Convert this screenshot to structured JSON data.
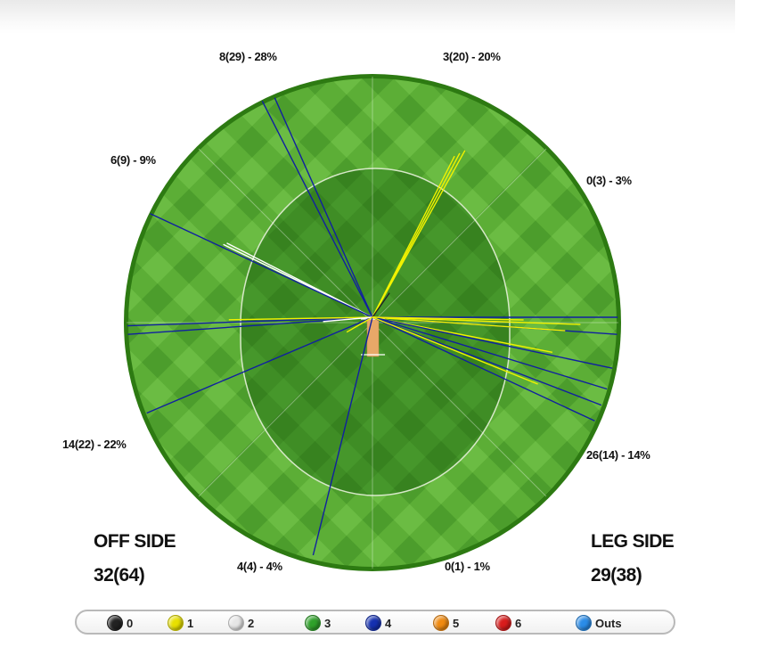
{
  "segments": [
    {
      "id": "fine-leg-behind-off",
      "label": "8(29) - 28%"
    },
    {
      "id": "fine-leg",
      "label": "3(20) - 20%"
    },
    {
      "id": "square-leg-behind",
      "label": "0(3) - 3%"
    },
    {
      "id": "midwicket",
      "label": "26(14) - 14%"
    },
    {
      "id": "long-on",
      "label": "0(1) - 1%"
    },
    {
      "id": "long-off",
      "label": "4(4) - 4%"
    },
    {
      "id": "cover",
      "label": "14(22) - 22%"
    },
    {
      "id": "third-man",
      "label": "6(9) - 9%"
    }
  ],
  "off_side": {
    "title": "OFF SIDE",
    "score": "32(64)"
  },
  "leg_side": {
    "title": "LEG SIDE",
    "score": "29(38)"
  },
  "legend": [
    {
      "label": "0",
      "color": "#222222"
    },
    {
      "label": "1",
      "color": "#e8e000"
    },
    {
      "label": "2",
      "color": "#e6e6e6"
    },
    {
      "label": "3",
      "color": "#2fa12a"
    },
    {
      "label": "4",
      "color": "#1530b0"
    },
    {
      "label": "5",
      "color": "#f08a10"
    },
    {
      "label": "6",
      "color": "#d81c1c"
    },
    {
      "label": "Outs",
      "color": "#2a8ce8"
    }
  ],
  "colors": {
    "outfield": "#5aa733",
    "infield": "#3d8a24",
    "boundary": "#2d7a12",
    "pitch": "#e8a868",
    "one": "#f2f200",
    "four": "#1020a0",
    "two": "#ffffff"
  },
  "shots": [
    {
      "runs": 4,
      "angle_deg": -114,
      "length": 0.97
    },
    {
      "runs": 4,
      "angle_deg": -117,
      "length": 0.98
    },
    {
      "runs": 2,
      "angle_deg": -154,
      "length": 0.67
    },
    {
      "runs": 2,
      "angle_deg": -153,
      "length": 0.66
    },
    {
      "runs": 4,
      "angle_deg": -155,
      "length": 0.99
    },
    {
      "runs": 4,
      "angle_deg": 178,
      "length": 0.99
    },
    {
      "runs": 4,
      "angle_deg": 176,
      "length": 0.99
    },
    {
      "runs": 4,
      "angle_deg": 157,
      "length": 0.99
    },
    {
      "runs": 1,
      "angle_deg": 179,
      "length": 0.58
    },
    {
      "runs": 2,
      "angle_deg": 175,
      "length": 0.2
    },
    {
      "runs": 4,
      "angle_deg": 104,
      "length": 0.99
    },
    {
      "runs": 1,
      "angle_deg": 150,
      "length": 0.12
    },
    {
      "runs": 1,
      "angle_deg": -61,
      "length": 0.77
    },
    {
      "runs": 1,
      "angle_deg": -62,
      "length": 0.75
    },
    {
      "runs": 1,
      "angle_deg": -63,
      "length": 0.73
    },
    {
      "runs": 0,
      "angle_deg": -55,
      "length": 0.12
    },
    {
      "runs": 4,
      "angle_deg": 0,
      "length": 0.99
    },
    {
      "runs": 4,
      "angle_deg": 4,
      "length": 0.99
    },
    {
      "runs": 1,
      "angle_deg": 2,
      "length": 0.84
    },
    {
      "runs": 1,
      "angle_deg": 4,
      "length": 0.78
    },
    {
      "runs": 1,
      "angle_deg": 11,
      "length": 0.74
    },
    {
      "runs": 4,
      "angle_deg": 12,
      "length": 0.99
    },
    {
      "runs": 4,
      "angle_deg": 17,
      "length": 0.99
    },
    {
      "runs": 4,
      "angle_deg": 21,
      "length": 0.99
    },
    {
      "runs": 4,
      "angle_deg": 25,
      "length": 0.99
    },
    {
      "runs": 1,
      "angle_deg": 22,
      "length": 0.72
    },
    {
      "runs": 1,
      "angle_deg": 1,
      "length": 0.61
    }
  ]
}
